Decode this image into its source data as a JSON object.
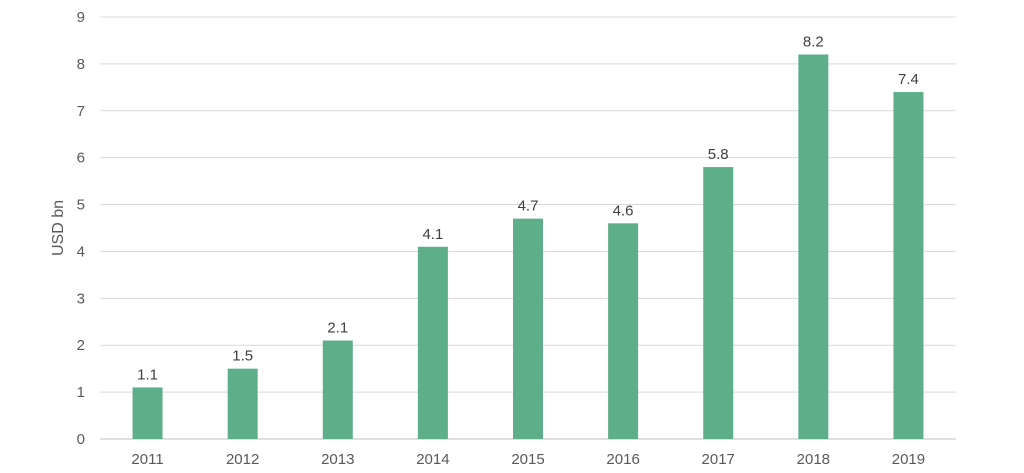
{
  "chart_data": {
    "type": "bar",
    "categories": [
      "2011",
      "2012",
      "2013",
      "2014",
      "2015",
      "2016",
      "2017",
      "2018",
      "2019"
    ],
    "values": [
      1.1,
      1.5,
      2.1,
      4.1,
      4.7,
      4.6,
      5.8,
      8.2,
      7.4
    ],
    "data_labels": [
      "1.1",
      "1.5",
      "2.1",
      "4.1",
      "4.7",
      "4.6",
      "5.8",
      "8.2",
      "7.4"
    ],
    "title": "",
    "xlabel": "",
    "ylabel": "USD bn",
    "ylim": [
      0,
      9
    ],
    "yticks": [
      "0",
      "1",
      "2",
      "3",
      "4",
      "5",
      "6",
      "7",
      "8",
      "9"
    ],
    "grid": true,
    "legend": "none",
    "bar_color": "#5fae8a"
  }
}
